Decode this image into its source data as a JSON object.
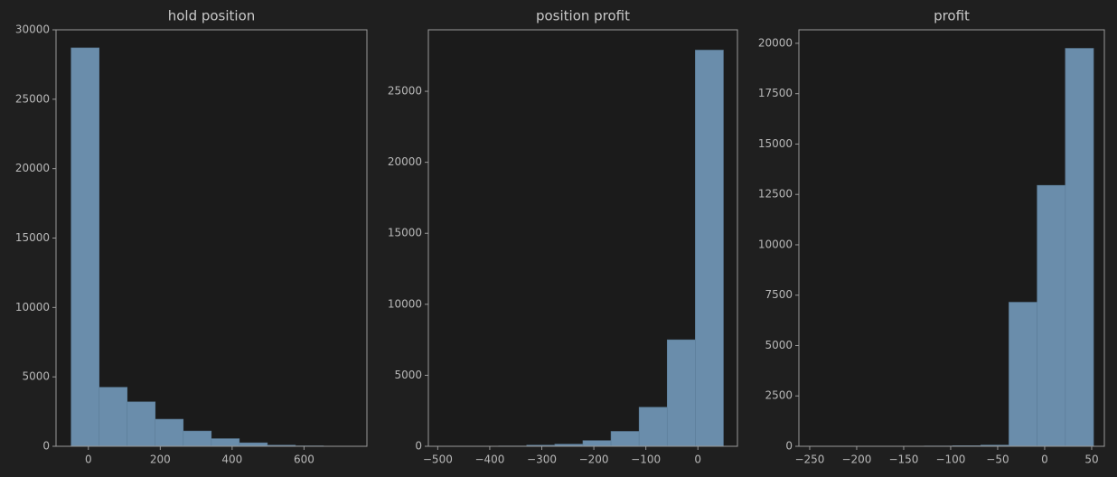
{
  "chart_data": [
    {
      "type": "histogram",
      "title": "hold position",
      "color": "#6a8dab",
      "bins": [
        -48,
        30,
        108,
        186,
        264,
        342,
        420,
        498,
        576,
        654,
        732
      ],
      "values": [
        28700,
        4250,
        3200,
        1950,
        1100,
        550,
        250,
        80,
        30,
        10
      ],
      "xlim": [
        -90,
        775
      ],
      "xticks": [
        0,
        200,
        400,
        600
      ],
      "ylim": [
        0,
        30000
      ],
      "yticks": [
        0,
        5000,
        10000,
        15000,
        20000,
        25000,
        30000
      ]
    },
    {
      "type": "histogram",
      "title": "position profit",
      "color": "#6a8dab",
      "bins": [
        -491,
        -437,
        -383,
        -329,
        -275,
        -221,
        -167,
        -113,
        -59,
        -5,
        49
      ],
      "values": [
        5,
        10,
        20,
        80,
        150,
        400,
        1050,
        2750,
        7500,
        27900
      ],
      "xlim": [
        -518,
        76
      ],
      "xticks": [
        {
          "value": -500,
          "label": "−500"
        },
        {
          "value": -400,
          "label": "−400"
        },
        {
          "value": -300,
          "label": "−300"
        },
        {
          "value": -200,
          "label": "−200"
        },
        {
          "value": -100,
          "label": "−100"
        },
        0
      ],
      "ylim": [
        0,
        29330
      ],
      "yticks": [
        0,
        5000,
        10000,
        15000,
        20000,
        25000
      ]
    },
    {
      "type": "histogram",
      "title": "profit",
      "color": "#6a8dab",
      "bins": [
        -248,
        -218,
        -188,
        -158,
        -128,
        -98,
        -68,
        -38,
        -8,
        22,
        52
      ],
      "values": [
        2,
        3,
        5,
        8,
        15,
        30,
        60,
        7150,
        12950,
        19750
      ],
      "xlim": [
        -261.5,
        63.5
      ],
      "xticks": [
        {
          "value": -250,
          "label": "−250"
        },
        {
          "value": -200,
          "label": "−200"
        },
        {
          "value": -150,
          "label": "−150"
        },
        {
          "value": -100,
          "label": "−100"
        },
        {
          "value": -50,
          "label": "−50"
        },
        0,
        50
      ],
      "ylim": [
        0,
        20670
      ],
      "yticks": [
        0,
        2500,
        5000,
        7500,
        10000,
        12500,
        15000,
        17500,
        20000
      ]
    }
  ]
}
